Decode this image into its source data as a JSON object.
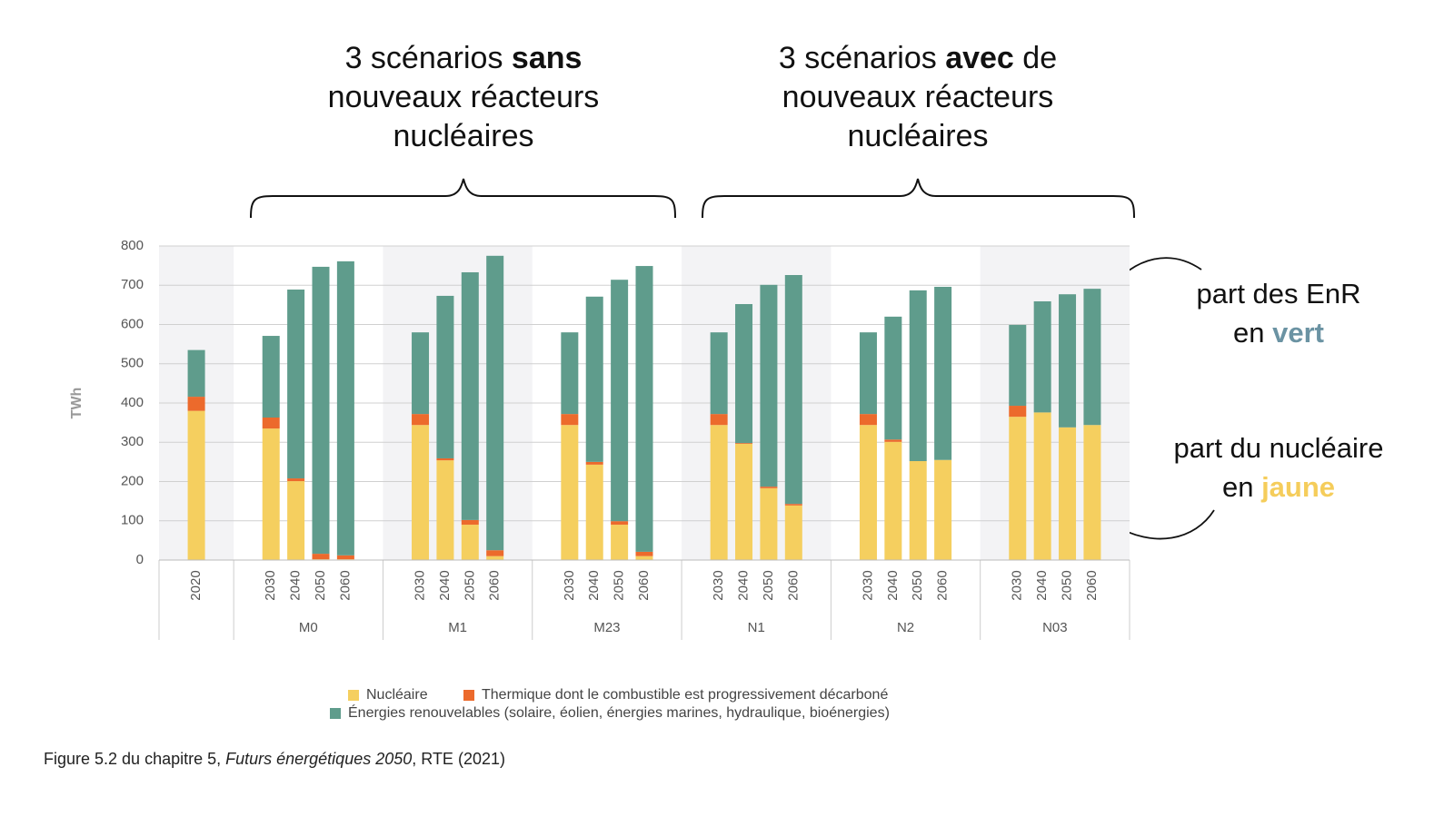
{
  "chart_data": {
    "type": "grouped_stacked_bar",
    "header_left": [
      "3 scénarios ",
      "sans",
      "nouveaux réacteurs",
      "nucléaires"
    ],
    "header_right": [
      "3 scénarios ",
      "avec",
      " de",
      "nouveaux réacteurs",
      "nucléaires"
    ],
    "note_enr": [
      "part des EnR",
      "en ",
      "vert"
    ],
    "note_nuc": [
      "part du nucléaire",
      "en ",
      "jaune"
    ],
    "ylabel": "TWh",
    "ylim": [
      0,
      800
    ],
    "yticks": [
      0,
      100,
      200,
      300,
      400,
      500,
      600,
      700,
      800
    ],
    "grid": true,
    "groups": [
      {
        "name": null,
        "categories": [
          "2020"
        ]
      },
      {
        "name": "M0",
        "categories": [
          "2030",
          "2040",
          "2050",
          "2060"
        ]
      },
      {
        "name": "M1",
        "categories": [
          "2030",
          "2040",
          "2050",
          "2060"
        ]
      },
      {
        "name": "M23",
        "categories": [
          "2030",
          "2040",
          "2050",
          "2060"
        ]
      },
      {
        "name": "N1",
        "categories": [
          "2030",
          "2040",
          "2050",
          "2060"
        ]
      },
      {
        "name": "N2",
        "categories": [
          "2030",
          "2040",
          "2050",
          "2060"
        ]
      },
      {
        "name": "N03",
        "categories": [
          "2030",
          "2040",
          "2050",
          "2060"
        ]
      }
    ],
    "series": [
      {
        "name": "Nucléaire",
        "color": "#f5cf5f",
        "values": [
          380,
          335,
          201,
          2,
          2,
          344,
          254,
          90,
          10,
          344,
          243,
          90,
          10,
          344,
          296,
          183,
          139,
          344,
          301,
          252,
          255,
          365,
          376,
          338,
          344
        ]
      },
      {
        "name": "Thermique dont le combustible est progressivement décarboné",
        "color": "#ec6a2c",
        "values": [
          36,
          28,
          7,
          14,
          10,
          28,
          5,
          12,
          15,
          28,
          7,
          9,
          11,
          28,
          2,
          4,
          4,
          28,
          6,
          0,
          0,
          28,
          0,
          0,
          0
        ]
      },
      {
        "name": "Énergies renouvelables (solaire, éolien, énergies marines, hydraulique, bioénergies)",
        "color": "#5f9c8c",
        "values": [
          119,
          208,
          481,
          731,
          749,
          208,
          414,
          631,
          750,
          208,
          421,
          615,
          728,
          208,
          354,
          514,
          583,
          208,
          313,
          435,
          441,
          206,
          283,
          339,
          347
        ]
      }
    ],
    "caption": [
      "Figure 5.2 du chapitre 5, ",
      "Futurs énergétiques 2050",
      ", RTE (2021)"
    ]
  }
}
